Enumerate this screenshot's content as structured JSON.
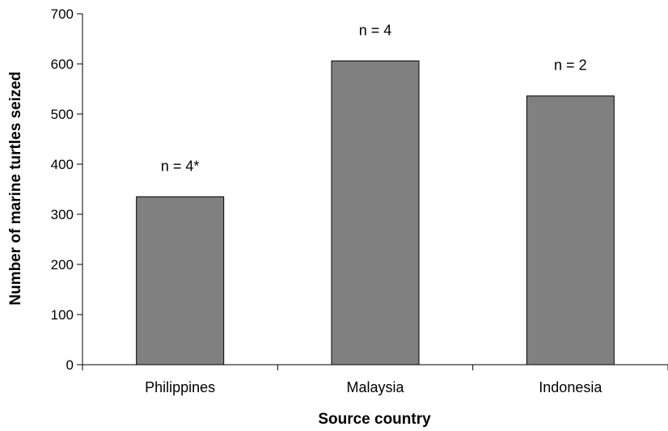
{
  "chart_data": {
    "type": "bar",
    "categories": [
      "Philippines",
      "Malaysia",
      "Indonesia"
    ],
    "values": [
      335,
      606,
      536
    ],
    "annotations": [
      "n = 4*",
      "n = 4",
      "n = 2"
    ],
    "xlabel": "Source country",
    "ylabel": "Number of marine turtles seized",
    "ylim": [
      0,
      700
    ],
    "yticks": [
      0,
      100,
      200,
      300,
      400,
      500,
      600,
      700
    ],
    "grid": false,
    "bar_color": "#808080",
    "bar_edge_color": "#000000"
  }
}
